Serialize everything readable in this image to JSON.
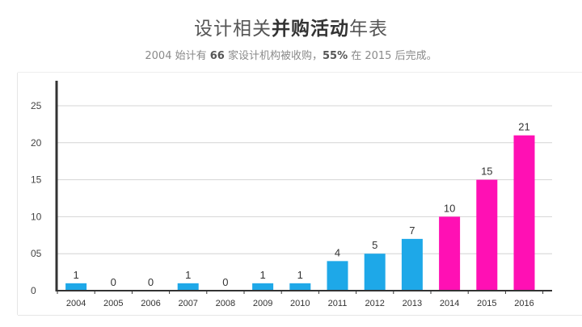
{
  "header": {
    "title_part1": "设计相关",
    "title_bold": "并购活动",
    "title_part2": "年表",
    "subtitle_part1": "2004 始计有 ",
    "subtitle_bold1": "66",
    "subtitle_part2": " 家设计机构被收购，",
    "subtitle_bold2": "55%",
    "subtitle_part3": " 在 2015 后完成。"
  },
  "colors": {
    "bar_blue": "#1ea8e8",
    "bar_pink": "#ff10b4"
  },
  "chart_data": {
    "type": "bar",
    "categories": [
      "2004",
      "2005",
      "2006",
      "2007",
      "2008",
      "2009",
      "2010",
      "2011",
      "2012",
      "2013",
      "2014",
      "2015",
      "2016"
    ],
    "values": [
      1,
      0,
      0,
      1,
      0,
      1,
      1,
      4,
      5,
      7,
      10,
      15,
      21
    ],
    "value_labels": [
      "1",
      "0",
      "0",
      "1",
      "0",
      "1",
      "1",
      "4",
      "5",
      "7",
      "10",
      "15",
      "21"
    ],
    "highlight_from_index": 10,
    "ylim": [
      0,
      25
    ],
    "yticks": [
      0,
      5,
      10,
      15,
      20,
      25
    ],
    "ytick_labels": [
      "0",
      "05",
      "10",
      "15",
      "20",
      "25"
    ],
    "grid": true,
    "xlabel": "",
    "ylabel": ""
  }
}
